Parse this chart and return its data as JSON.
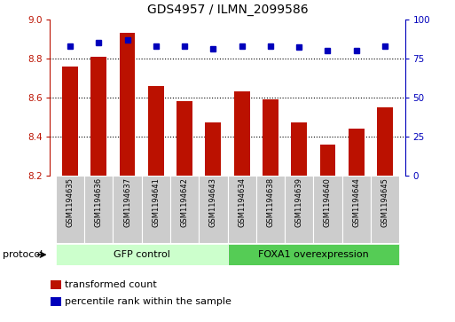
{
  "title": "GDS4957 / ILMN_2099586",
  "samples": [
    "GSM1194635",
    "GSM1194636",
    "GSM1194637",
    "GSM1194641",
    "GSM1194642",
    "GSM1194643",
    "GSM1194634",
    "GSM1194638",
    "GSM1194639",
    "GSM1194640",
    "GSM1194644",
    "GSM1194645"
  ],
  "transformed_count": [
    8.76,
    8.81,
    8.93,
    8.66,
    8.58,
    8.47,
    8.63,
    8.59,
    8.47,
    8.36,
    8.44,
    8.55
  ],
  "percentile_rank": [
    83,
    85,
    87,
    83,
    83,
    81,
    83,
    83,
    82,
    80,
    80,
    83
  ],
  "ylim_left": [
    8.2,
    9.0
  ],
  "ylim_right": [
    0,
    100
  ],
  "yticks_left": [
    8.2,
    8.4,
    8.6,
    8.8,
    9.0
  ],
  "yticks_right": [
    0,
    25,
    50,
    75,
    100
  ],
  "groups": [
    {
      "label": "GFP control",
      "start": 0,
      "end": 6,
      "color": "#ccffcc"
    },
    {
      "label": "FOXA1 overexpression",
      "start": 6,
      "end": 12,
      "color": "#55cc55"
    }
  ],
  "bar_color": "#bb1100",
  "dot_color": "#0000bb",
  "bar_bottom": 8.2,
  "grid_values": [
    8.4,
    8.6,
    8.8
  ],
  "legend_items": [
    {
      "label": "transformed count",
      "color": "#bb1100"
    },
    {
      "label": "percentile rank within the sample",
      "color": "#0000bb"
    }
  ],
  "protocol_label": "protocol",
  "sample_box_color": "#cccccc",
  "fig_width": 5.13,
  "fig_height": 3.63,
  "dpi": 100
}
